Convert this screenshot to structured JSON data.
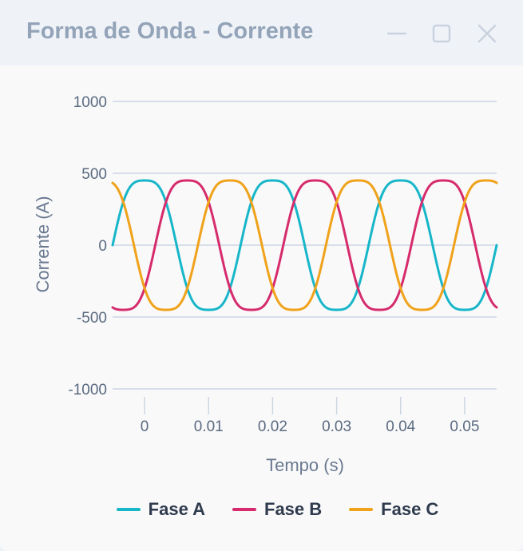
{
  "window": {
    "title": "Forma de Onda - Corrente",
    "controls": [
      "minimize-icon",
      "maximize-icon",
      "close-icon"
    ]
  },
  "colors": {
    "fase_a": "#17b6c9",
    "fase_b": "#d62b6c",
    "fase_c": "#f0a21a",
    "grid": "#cdd6e1"
  },
  "chart_data": {
    "type": "line",
    "title": "",
    "xlabel": "Tempo (s)",
    "ylabel": "Corrente (A)",
    "xlim": [
      -0.005,
      0.055
    ],
    "ylim": [
      -1000,
      1000
    ],
    "x_ticks": [
      0,
      0.01,
      0.02,
      0.03,
      0.04,
      0.05
    ],
    "x_tick_labels": [
      "0",
      "0.01",
      "0.02",
      "0.03",
      "0.04",
      "0.05"
    ],
    "y_ticks": [
      -1000,
      -500,
      0,
      500,
      1000
    ],
    "y_tick_labels": [
      "-1000",
      "-500",
      "0",
      "500",
      "1000"
    ],
    "grid": "horizontal",
    "legend_position": "bottom",
    "frequency_hz": 50,
    "amplitude": 500,
    "harmonic_3rd_ratio": 0.1,
    "series": [
      {
        "name": "Fase A",
        "phase_deg": 0
      },
      {
        "name": "Fase B",
        "phase_deg": -120
      },
      {
        "name": "Fase C",
        "phase_deg": 120
      }
    ]
  },
  "legend": {
    "items": [
      "Fase A",
      "Fase B",
      "Fase C"
    ]
  }
}
